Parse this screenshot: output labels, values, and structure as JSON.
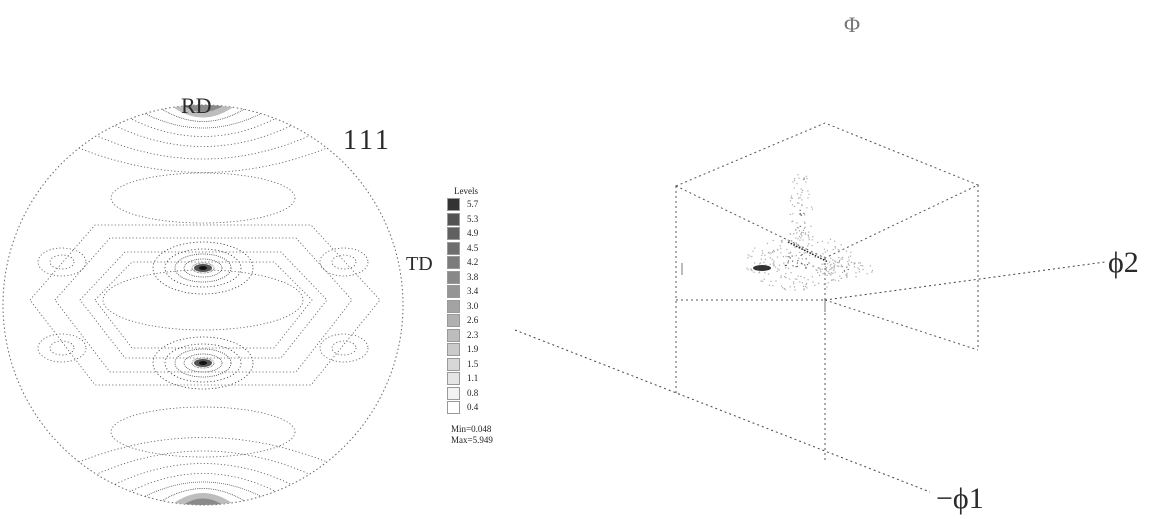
{
  "pole_figure": {
    "rd_label": "RD",
    "td_label": "TD",
    "plane_label": "111"
  },
  "legend": {
    "title": "Levels",
    "levels": [
      "5.7",
      "5.3",
      "4.9",
      "4.5",
      "4.2",
      "3.8",
      "3.4",
      "3.0",
      "2.6",
      "2.3",
      "1.9",
      "1.5",
      "1.1",
      "0.8",
      "0.4"
    ],
    "min_text": "Min=0.048",
    "max_text": "Max=5.949"
  },
  "odf_plot": {
    "phi_label": "Φ",
    "phi2_label": "ϕ2",
    "phi1_label": "−ϕ1"
  },
  "colors": {
    "contour": "#555555",
    "dense_contour": "#333333",
    "circle": "#666666",
    "box": "#555555"
  }
}
